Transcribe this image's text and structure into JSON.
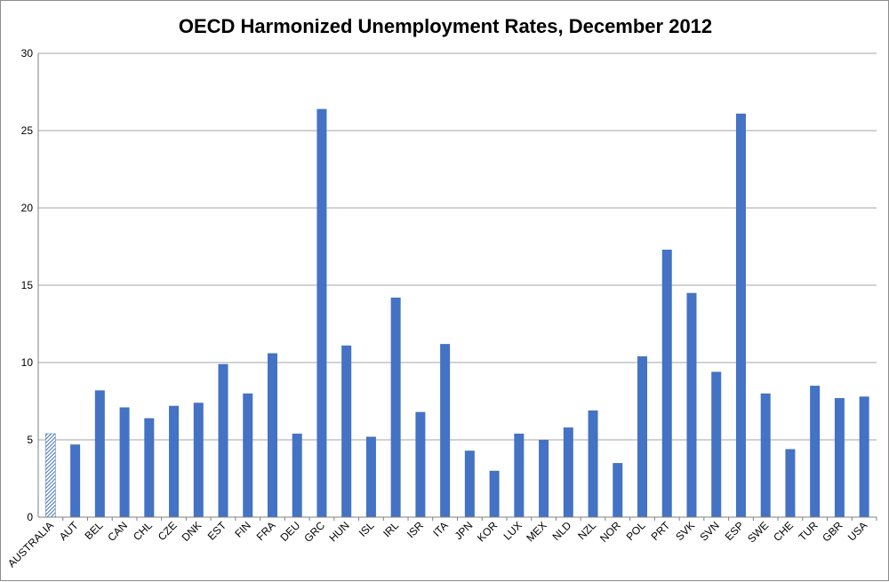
{
  "chart_data": {
    "type": "bar",
    "title": "OECD Harmonized Unemployment Rates, December 2012",
    "xlabel": "",
    "ylabel": "",
    "ylim": [
      0,
      30
    ],
    "yticks": [
      0,
      5,
      10,
      15,
      20,
      25,
      30
    ],
    "grid": true,
    "legend": "none",
    "categories": [
      "AUSTRALIA",
      "AUT",
      "BEL",
      "CAN",
      "CHL",
      "CZE",
      "DNK",
      "EST",
      "FIN",
      "FRA",
      "DEU",
      "GRC",
      "HUN",
      "ISL",
      "IRL",
      "ISR",
      "ITA",
      "JPN",
      "KOR",
      "LUX",
      "MEX",
      "NLD",
      "NZL",
      "NOR",
      "POL",
      "PRT",
      "SVK",
      "SVN",
      "ESP",
      "SWE",
      "CHE",
      "TUR",
      "GBR",
      "USA"
    ],
    "values": [
      5.4,
      4.7,
      8.2,
      7.1,
      6.4,
      7.2,
      7.4,
      9.9,
      8.0,
      10.6,
      5.4,
      26.4,
      11.1,
      5.2,
      14.2,
      6.8,
      11.2,
      4.3,
      3.0,
      5.4,
      5.0,
      5.8,
      6.9,
      3.5,
      10.4,
      17.3,
      14.5,
      9.4,
      26.1,
      8.0,
      4.4,
      8.5,
      7.7,
      7.8
    ],
    "highlighted_category": "AUSTRALIA",
    "colors": {
      "bar": "#4472c4",
      "highlight": "#4472c4",
      "grid": "#a6a6a6",
      "axis": "#7f7f7f"
    }
  }
}
